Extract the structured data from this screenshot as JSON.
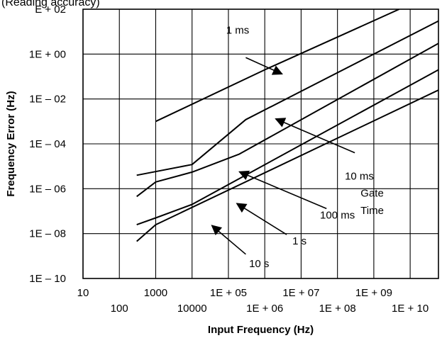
{
  "header_fragment": "(Reading accuracy)",
  "chart_data": {
    "type": "line",
    "title": "",
    "xlabel": "Input Frequency (Hz)",
    "ylabel": "Frequency Error (Hz)",
    "x_scale": "log",
    "y_scale": "log",
    "xlim": [
      10,
      60000000000
    ],
    "ylim": [
      1e-10,
      100
    ],
    "grid": true,
    "x_ticks": [
      {
        "value": 10,
        "label": "10",
        "row": "upper"
      },
      {
        "value": 100,
        "label": "100",
        "row": "lower"
      },
      {
        "value": 1000,
        "label": "1000",
        "row": "upper"
      },
      {
        "value": 10000,
        "label": "10000",
        "row": "lower"
      },
      {
        "value": 100000,
        "label": "1E + 05",
        "row": "upper"
      },
      {
        "value": 1000000,
        "label": "1E + 06",
        "row": "lower"
      },
      {
        "value": 10000000,
        "label": "1E + 07",
        "row": "upper"
      },
      {
        "value": 100000000,
        "label": "1E + 08",
        "row": "lower"
      },
      {
        "value": 1000000000,
        "label": "1E + 09",
        "row": "upper"
      },
      {
        "value": 10000000000,
        "label": "1E + 10",
        "row": "lower"
      }
    ],
    "y_ticks": [
      {
        "value": 100,
        "label": "E + 02"
      },
      {
        "value": 1,
        "label": "1E + 00"
      },
      {
        "value": 0.01,
        "label": "1E – 02"
      },
      {
        "value": 0.0001,
        "label": "1E – 04"
      },
      {
        "value": 1e-06,
        "label": "1E – 06"
      },
      {
        "value": 1e-08,
        "label": "1E – 08"
      },
      {
        "value": 1e-10,
        "label": "1E – 10"
      }
    ],
    "series": [
      {
        "id": "gate-1ms",
        "x": [
          1000,
          1000000,
          5000000000
        ],
        "y": [
          0.001,
          0.2,
          100
        ]
      },
      {
        "id": "gate-10ms",
        "x": [
          300,
          10000,
          300000,
          60000000000
        ],
        "y": [
          4e-06,
          1.2e-05,
          0.0012,
          30
        ]
      },
      {
        "id": "gate-100ms",
        "x": [
          300,
          1000,
          10000,
          200000,
          60000000000
        ],
        "y": [
          4.5e-07,
          2e-06,
          5.5e-06,
          3.5e-05,
          3
        ]
      },
      {
        "id": "gate-1s",
        "x": [
          300,
          1000,
          10000,
          60000000000
        ],
        "y": [
          2.5e-08,
          5e-08,
          2e-07,
          0.2
        ]
      },
      {
        "id": "gate-10s",
        "x": [
          300,
          1000,
          60000000000
        ],
        "y": [
          4.5e-09,
          2.5e-08,
          0.025
        ]
      }
    ],
    "annotations": [
      {
        "id": "label-1ms",
        "text": "1 ms",
        "tx": 180000,
        "ty": 8,
        "ax": 300000,
        "ay": 0.7,
        "hx": 3000000,
        "hy": 0.13
      },
      {
        "id": "label-10ms",
        "text": "10 ms",
        "tx": 400000000,
        "ty": 2.5e-06,
        "ax": 300000000,
        "ay": 4e-05,
        "hx": 2000000,
        "hy": 0.0013
      },
      {
        "id": "label-100ms",
        "text": "100 ms",
        "tx": 100000000,
        "ty": 4.7e-08,
        "ax": 50000000,
        "ay": 1.3e-07,
        "hx": 200000,
        "hy": 5.7e-06
      },
      {
        "id": "label-1s",
        "text": "1 s",
        "tx": 9000000,
        "ty": 3.3e-09,
        "ax": 4000000,
        "ay": 9e-09,
        "hx": 170000,
        "hy": 2.2e-07
      },
      {
        "id": "label-10s",
        "text": "10 s",
        "tx": 700000,
        "ty": 3.2e-10,
        "ax": 300000,
        "ay": 1.2e-09,
        "hx": 35000,
        "hy": 2.3e-08
      },
      {
        "id": "label-gate-time-1",
        "text": "Gate",
        "tx": 900000000,
        "ty": 4.5e-07
      },
      {
        "id": "label-gate-time-2",
        "text": "Time",
        "tx": 900000000,
        "ty": 7.5e-08
      }
    ]
  }
}
